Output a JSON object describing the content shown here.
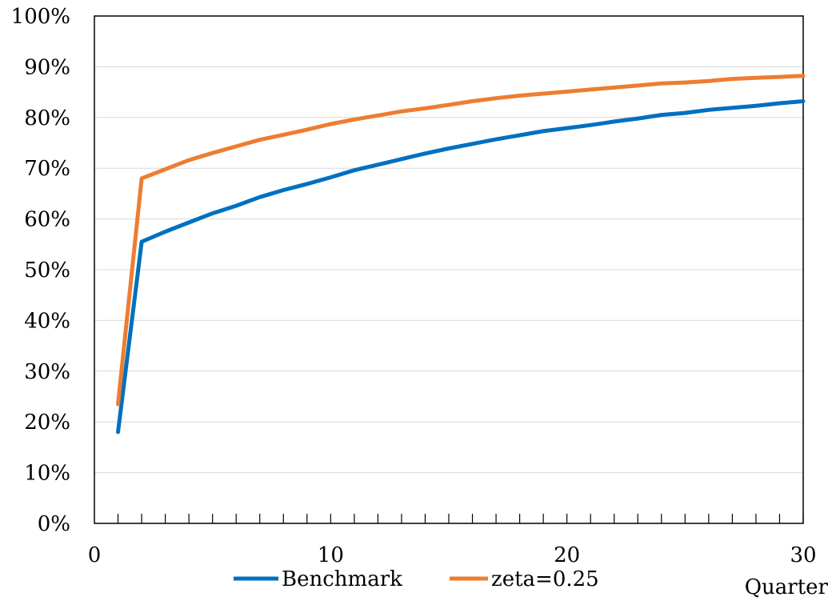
{
  "chart_data": {
    "type": "line",
    "title": "",
    "xlabel": "Quarter",
    "ylabel": "",
    "xlim": [
      0,
      30
    ],
    "ylim": [
      0,
      1
    ],
    "x_ticks": [
      0,
      10,
      20,
      30
    ],
    "x_tick_labels": [
      "0",
      "10",
      "20",
      "30"
    ],
    "x_minor_ticks": [
      1,
      2,
      3,
      4,
      5,
      6,
      7,
      8,
      9,
      10,
      11,
      12,
      13,
      14,
      15,
      16,
      17,
      18,
      19,
      20,
      21,
      22,
      23,
      24,
      25,
      26,
      27,
      28,
      29,
      30
    ],
    "y_ticks": [
      0,
      0.1,
      0.2,
      0.3,
      0.4,
      0.5,
      0.6,
      0.7,
      0.8,
      0.9,
      1.0
    ],
    "y_tick_labels": [
      "0%",
      "10%",
      "20%",
      "30%",
      "40%",
      "50%",
      "60%",
      "70%",
      "80%",
      "90%",
      "100%"
    ],
    "grid": "horizontal",
    "legend_position": "bottom",
    "x": [
      1,
      2,
      3,
      4,
      5,
      6,
      7,
      8,
      9,
      10,
      11,
      12,
      13,
      14,
      15,
      16,
      17,
      18,
      19,
      20,
      21,
      22,
      23,
      24,
      25,
      26,
      27,
      28,
      29,
      30
    ],
    "series": [
      {
        "name": "Benchmark",
        "color": "#0070C0",
        "values": [
          0.18,
          0.555,
          0.575,
          0.593,
          0.611,
          0.626,
          0.643,
          0.657,
          0.669,
          0.682,
          0.696,
          0.707,
          0.718,
          0.729,
          0.739,
          0.748,
          0.757,
          0.765,
          0.773,
          0.779,
          0.785,
          0.792,
          0.798,
          0.805,
          0.809,
          0.815,
          0.819,
          0.823,
          0.828,
          0.832
        ]
      },
      {
        "name": "zeta=0.25",
        "color": "#ED7D31",
        "values": [
          0.235,
          0.68,
          0.698,
          0.716,
          0.73,
          0.743,
          0.756,
          0.766,
          0.776,
          0.787,
          0.796,
          0.804,
          0.812,
          0.818,
          0.825,
          0.832,
          0.838,
          0.843,
          0.847,
          0.851,
          0.855,
          0.859,
          0.863,
          0.867,
          0.869,
          0.872,
          0.876,
          0.878,
          0.88,
          0.882
        ]
      }
    ]
  }
}
